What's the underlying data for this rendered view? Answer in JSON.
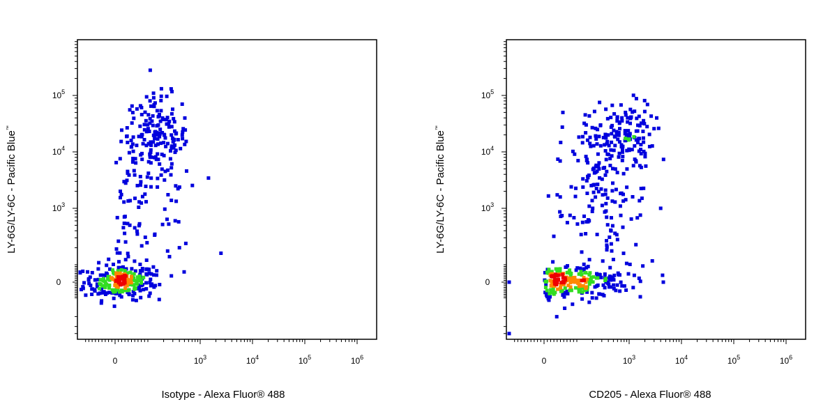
{
  "chart_data": [
    {
      "type": "scatter",
      "title": "",
      "xlabel": "Isotype - Alexa Fluor® 488",
      "ylabel": "LY-6G/LY-6C - Pacific Blue",
      "ylabel_mark": "™",
      "x_scale": "biexponential",
      "y_scale": "biexponential",
      "grid": false,
      "density_colors": [
        "#0000dd",
        "#33dd22",
        "#ff8800",
        "#ee0000"
      ],
      "x_ticks": [
        {
          "value": 0,
          "base": "0",
          "exp": ""
        },
        {
          "value": 1000,
          "base": "10",
          "exp": "3"
        },
        {
          "value": 10000,
          "base": "10",
          "exp": "4"
        },
        {
          "value": 100000,
          "base": "10",
          "exp": "5"
        },
        {
          "value": 1000000,
          "base": "10",
          "exp": "6"
        }
      ],
      "y_ticks": [
        {
          "value": 0,
          "base": "0",
          "exp": ""
        },
        {
          "value": 1000,
          "base": "10",
          "exp": "3"
        },
        {
          "value": 10000,
          "base": "10",
          "exp": "4"
        },
        {
          "value": 100000,
          "base": "10",
          "exp": "5"
        }
      ],
      "populations": [
        {
          "x": 15,
          "y": 0,
          "sx": 55,
          "sy": 50,
          "count": 240
        },
        {
          "x": 150,
          "y": 20000,
          "sx": 0.3,
          "sy": 0.35,
          "count": 150
        },
        {
          "x": 90,
          "y": 1000,
          "sx": 0.5,
          "sy": 0.8,
          "count": 110
        }
      ],
      "outliers": [
        {
          "x": 2500,
          "y": 160
        },
        {
          "x": 340,
          "y": 2500
        },
        {
          "x": 400,
          "y": 200
        }
      ]
    },
    {
      "type": "scatter",
      "title": "",
      "xlabel": "CD205 - Alexa Fluor® 488",
      "ylabel": "LY-6G/LY-6C - Pacific Blue",
      "ylabel_mark": "™",
      "x_scale": "biexponential",
      "y_scale": "biexponential",
      "grid": false,
      "density_colors": [
        "#0000dd",
        "#33dd22",
        "#ff8800",
        "#ee0000"
      ],
      "x_ticks": [
        {
          "value": 0,
          "base": "0",
          "exp": ""
        },
        {
          "value": 1000,
          "base": "10",
          "exp": "3"
        },
        {
          "value": 10000,
          "base": "10",
          "exp": "4"
        },
        {
          "value": 100000,
          "base": "10",
          "exp": "5"
        },
        {
          "value": 1000000,
          "base": "10",
          "exp": "6"
        }
      ],
      "y_ticks": [
        {
          "value": 0,
          "base": "0",
          "exp": ""
        },
        {
          "value": 1000,
          "base": "10",
          "exp": "3"
        },
        {
          "value": 10000,
          "base": "10",
          "exp": "4"
        },
        {
          "value": 100000,
          "base": "10",
          "exp": "5"
        }
      ],
      "populations": [
        {
          "x": 80,
          "y": 0,
          "sx": 0.55,
          "sy": 50,
          "count": 240
        },
        {
          "x": 800,
          "y": 20000,
          "sx": 0.28,
          "sy": 0.3,
          "count": 120
        },
        {
          "x": 300,
          "y": 6000,
          "sx": 0.35,
          "sy": 0.45,
          "count": 70
        },
        {
          "x": 300,
          "y": 800,
          "sx": 0.45,
          "sy": 0.8,
          "count": 120
        }
      ],
      "outliers": [
        {
          "x": 4500,
          "y": 0
        },
        {
          "x": 4000,
          "y": 1000
        },
        {
          "x": -300,
          "y": -400
        },
        {
          "x": -200,
          "y": 0
        }
      ]
    }
  ]
}
